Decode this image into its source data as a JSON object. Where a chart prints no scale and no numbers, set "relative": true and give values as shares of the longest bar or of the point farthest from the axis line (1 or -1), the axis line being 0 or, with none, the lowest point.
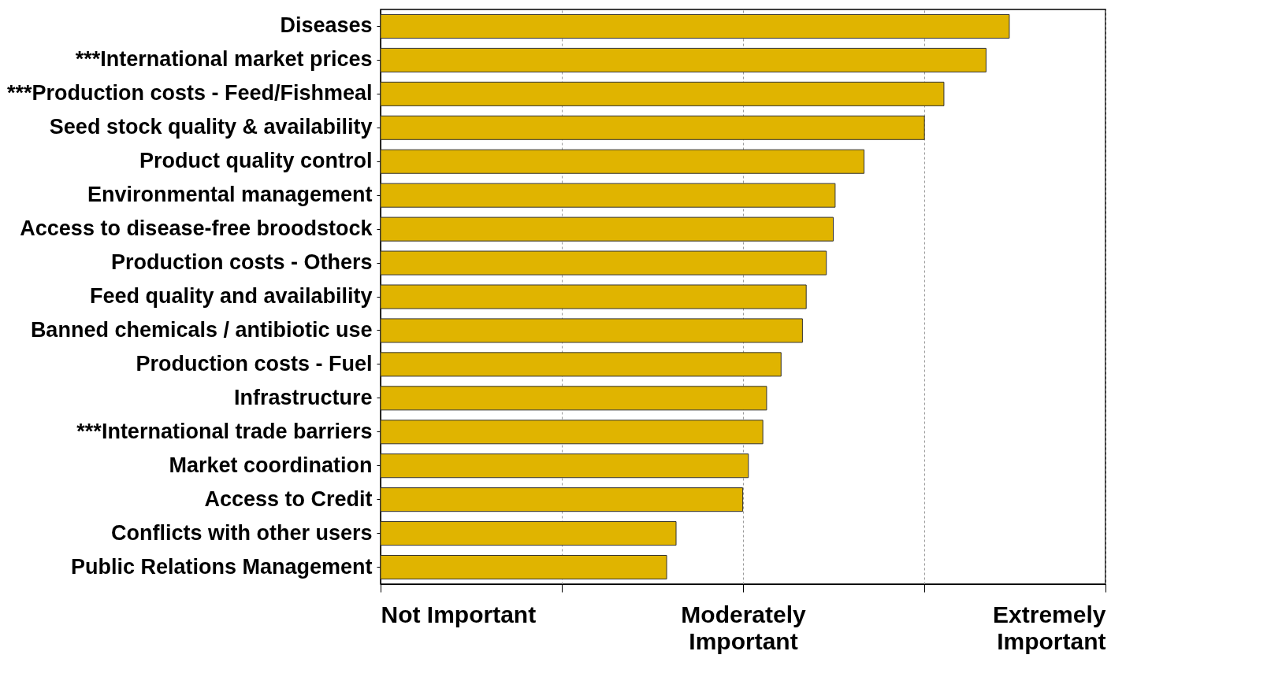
{
  "chart_data": {
    "type": "bar",
    "orientation": "horizontal",
    "relative": true,
    "categories": [
      "Diseases",
      "***International market prices",
      "***Production costs - Feed/Fishmeal",
      "Seed stock quality & availability",
      "Product quality control",
      "Environmental management",
      "Access to disease-free broodstock",
      "Production costs - Others",
      "Feed quality and availability",
      "Banned chemicals / antibiotic use",
      "Production costs - Fuel",
      "Infrastructure",
      "***International trade barriers",
      "Market coordination",
      "Access to Credit",
      "Conflicts with other users",
      "Public Relations Management"
    ],
    "values": [
      1,
      0.963,
      0.896,
      0.865,
      0.769,
      0.723,
      0.72,
      0.709,
      0.677,
      0.671,
      0.637,
      0.614,
      0.608,
      0.585,
      0.576,
      0.47,
      0.455
    ],
    "color": "#e0b400",
    "annotations": [
      "Not Important",
      "Moderately Important",
      "Extremely Important"
    ],
    "grid": "x"
  }
}
